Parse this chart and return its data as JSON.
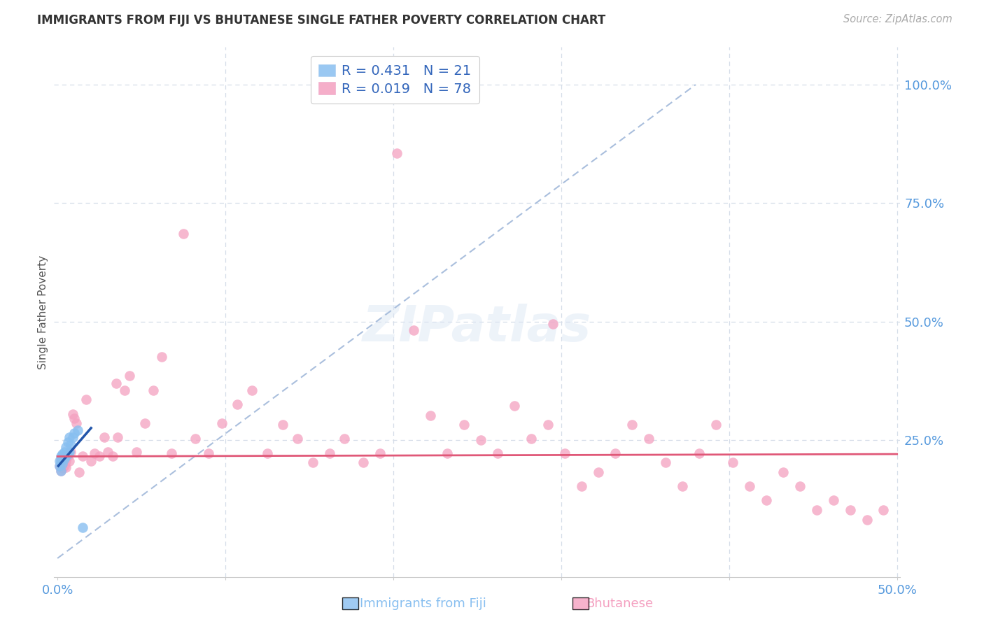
{
  "title": "IMMIGRANTS FROM FIJI VS BHUTANESE SINGLE FATHER POVERTY CORRELATION CHART",
  "source": "Source: ZipAtlas.com",
  "ylabel": "Single Father Poverty",
  "xlim_min": -0.002,
  "xlim_max": 0.502,
  "ylim_min": -0.04,
  "ylim_max": 1.08,
  "fiji_R": 0.431,
  "fiji_N": 21,
  "bhutan_R": 0.019,
  "bhutan_N": 78,
  "fiji_color": "#88bff0",
  "bhutan_color": "#f4a0c0",
  "fiji_line_color": "#2255aa",
  "bhutan_line_color": "#e05878",
  "ref_line_color": "#aabfdd",
  "grid_color": "#d5dde8",
  "ytick_color": "#5599dd",
  "xtick_color": "#5599dd",
  "background_color": "#ffffff",
  "fiji_x": [
    0.001,
    0.001,
    0.002,
    0.002,
    0.002,
    0.003,
    0.003,
    0.003,
    0.004,
    0.004,
    0.005,
    0.005,
    0.006,
    0.006,
    0.007,
    0.007,
    0.008,
    0.009,
    0.01,
    0.012,
    0.015
  ],
  "fiji_y": [
    0.205,
    0.195,
    0.185,
    0.215,
    0.205,
    0.2,
    0.22,
    0.215,
    0.21,
    0.225,
    0.215,
    0.235,
    0.22,
    0.245,
    0.225,
    0.255,
    0.24,
    0.255,
    0.265,
    0.27,
    0.065
  ],
  "bhutan_x": [
    0.001,
    0.002,
    0.002,
    0.003,
    0.003,
    0.004,
    0.004,
    0.005,
    0.005,
    0.006,
    0.007,
    0.008,
    0.009,
    0.01,
    0.011,
    0.013,
    0.015,
    0.017,
    0.02,
    0.022,
    0.025,
    0.028,
    0.03,
    0.033,
    0.036,
    0.04,
    0.043,
    0.047,
    0.052,
    0.057,
    0.062,
    0.068,
    0.075,
    0.082,
    0.09,
    0.098,
    0.107,
    0.116,
    0.125,
    0.134,
    0.143,
    0.152,
    0.162,
    0.171,
    0.182,
    0.192,
    0.202,
    0.212,
    0.222,
    0.232,
    0.242,
    0.252,
    0.262,
    0.272,
    0.282,
    0.292,
    0.302,
    0.312,
    0.322,
    0.332,
    0.342,
    0.352,
    0.362,
    0.372,
    0.382,
    0.392,
    0.402,
    0.412,
    0.422,
    0.432,
    0.442,
    0.452,
    0.462,
    0.472,
    0.482,
    0.492,
    0.035,
    0.295
  ],
  "bhutan_y": [
    0.195,
    0.21,
    0.185,
    0.205,
    0.19,
    0.215,
    0.195,
    0.205,
    0.192,
    0.215,
    0.205,
    0.225,
    0.305,
    0.295,
    0.285,
    0.182,
    0.215,
    0.335,
    0.205,
    0.222,
    0.215,
    0.255,
    0.225,
    0.215,
    0.255,
    0.355,
    0.385,
    0.225,
    0.285,
    0.355,
    0.425,
    0.222,
    0.685,
    0.252,
    0.222,
    0.285,
    0.325,
    0.355,
    0.222,
    0.282,
    0.252,
    0.202,
    0.222,
    0.252,
    0.202,
    0.222,
    0.855,
    0.482,
    0.302,
    0.222,
    0.282,
    0.25,
    0.222,
    0.322,
    0.252,
    0.282,
    0.222,
    0.152,
    0.182,
    0.222,
    0.282,
    0.252,
    0.202,
    0.152,
    0.222,
    0.282,
    0.202,
    0.152,
    0.122,
    0.182,
    0.152,
    0.102,
    0.122,
    0.102,
    0.082,
    0.102,
    0.37,
    0.495
  ],
  "ref_line_x0": 0.0,
  "ref_line_y0": 0.0,
  "ref_line_x1": 0.38,
  "ref_line_y1": 1.0,
  "bhutan_line_y0": 0.215,
  "bhutan_line_y1": 0.22,
  "fiji_line_x0": 0.0005,
  "fiji_line_x1": 0.02,
  "fiji_line_y0": 0.195,
  "fiji_line_y1": 0.275
}
